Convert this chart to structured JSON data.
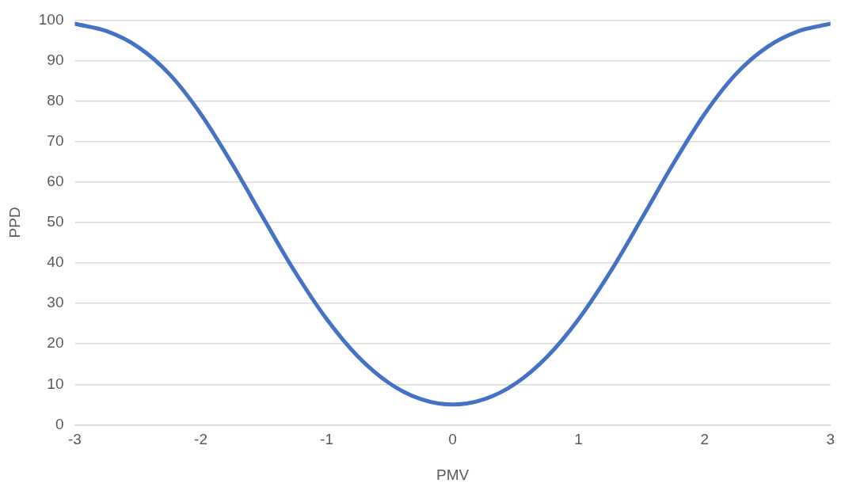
{
  "chart_data": {
    "type": "line",
    "xlabel": "PMV",
    "ylabel": "PPD",
    "x": [
      -3,
      -2.75,
      -2.5,
      -2.25,
      -2,
      -1.75,
      -1.5,
      -1.25,
      -1,
      -0.75,
      -0.5,
      -0.25,
      0,
      0.25,
      0.5,
      0.75,
      1,
      1.25,
      1.5,
      1.75,
      2,
      2.25,
      2.5,
      2.75,
      3
    ],
    "series": [
      {
        "color": "#4472c4",
        "values": [
          99.1,
          97.3,
          93.4,
          86.7,
          76.8,
          64.4,
          50.9,
          37.7,
          26.1,
          16.8,
          10.2,
          6.3,
          5,
          6.3,
          10.2,
          16.8,
          26.1,
          37.7,
          50.9,
          64.4,
          76.8,
          86.7,
          93.4,
          97.3,
          99.1
        ]
      }
    ],
    "xlim": [
      -3,
      3
    ],
    "xticks": [
      -3,
      -2,
      -1,
      0,
      1,
      2,
      3
    ],
    "ylim": [
      0,
      100
    ],
    "yticks": [
      0,
      10,
      20,
      30,
      40,
      50,
      60,
      70,
      80,
      90,
      100
    ],
    "grid": "y",
    "legend": false,
    "marker": "none",
    "line_style": "solid"
  }
}
